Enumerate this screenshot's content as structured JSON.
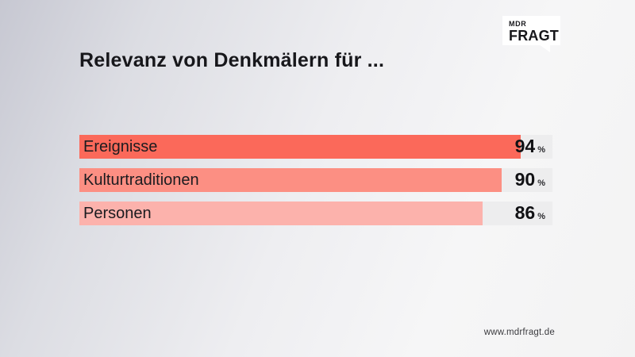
{
  "header": {
    "title": "Relevanz von Denkmälern für ..."
  },
  "logo": {
    "line1": "MDR",
    "line2": "FRAGT"
  },
  "chart_data": {
    "type": "bar",
    "orientation": "horizontal",
    "title": "Relevanz von Denkmälern für ...",
    "categories": [
      "Ereignisse",
      "Kulturtraditionen",
      "Personen"
    ],
    "values": [
      94,
      90,
      86
    ],
    "unit": "%",
    "axis_max": 100,
    "bar_colors": [
      "#fb695a",
      "#fc8f83",
      "#fcb2ac"
    ],
    "track_color": "#ededee",
    "legend": "none",
    "grid": "off"
  },
  "footer": {
    "url": "www.mdrfragt.de"
  },
  "colors": {
    "title_text": "#17171b",
    "label_text": "#1b1b1f",
    "value_text": "#111114",
    "logo_bg": "#ffffff",
    "background_dark_corner": "#c7c8d2",
    "background_light": "#f6f6f7"
  }
}
